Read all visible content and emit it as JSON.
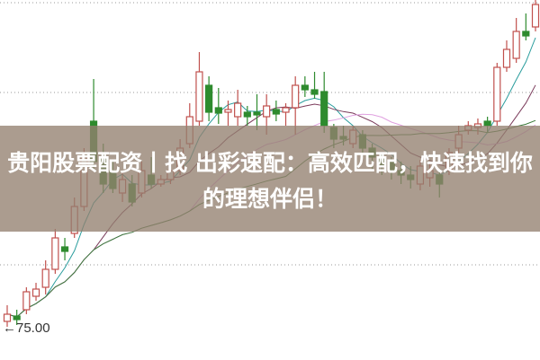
{
  "overlay": {
    "caption": "贵阳股票配资丨找 出彩速配：高效匹配，快速找到你的理想伴侣！",
    "background_color": "#947f70"
  },
  "chart_data": {
    "type": "candlestick",
    "title": "",
    "xlabel": "",
    "ylabel": "",
    "ylim": [
      71.1,
      111.2
    ],
    "grid": "dotted horizontal",
    "up_color": "#c0504d",
    "down_color": "#2e8b2e",
    "moving_average_colors": [
      "#2a9d9d",
      "#7a3a5a",
      "#e0a0e0",
      "#3a7a3a"
    ],
    "annotation": {
      "text": "75.00",
      "arrow": "←"
    },
    "candles": [
      [
        75.4,
        76.2,
        77.2,
        74.8
      ],
      [
        76.0,
        75.6,
        76.7,
        75.0
      ],
      [
        76.7,
        78.7,
        79.2,
        76.2
      ],
      [
        78.2,
        79.0,
        79.7,
        77.7
      ],
      [
        79.2,
        81.2,
        82.2,
        78.4
      ],
      [
        81.2,
        84.7,
        85.7,
        80.7
      ],
      [
        83.7,
        83.2,
        84.7,
        82.2
      ],
      [
        85.2,
        88.2,
        89.2,
        84.7
      ],
      [
        88.2,
        93.7,
        94.7,
        87.7
      ],
      [
        97.7,
        93.2,
        102.4,
        92.2
      ],
      [
        93.7,
        90.7,
        95.2,
        89.7
      ],
      [
        92.2,
        90.2,
        93.2,
        89.7
      ],
      [
        89.7,
        91.2,
        92.2,
        88.7
      ],
      [
        90.7,
        88.7,
        91.7,
        88.2
      ],
      [
        89.7,
        92.2,
        93.2,
        89.2
      ],
      [
        91.7,
        90.7,
        93.7,
        90.2
      ],
      [
        90.7,
        91.2,
        91.7,
        90.4
      ],
      [
        91.2,
        92.2,
        93.2,
        90.7
      ],
      [
        92.2,
        94.7,
        95.7,
        91.7
      ],
      [
        95.2,
        98.2,
        99.7,
        94.7
      ],
      [
        97.7,
        103.2,
        105.4,
        97.2
      ],
      [
        101.7,
        98.7,
        102.7,
        97.7
      ],
      [
        99.2,
        98.6,
        101.4,
        97.4
      ],
      [
        98.7,
        99.0,
        100.0,
        97.2
      ],
      [
        98.2,
        99.7,
        101.2,
        97.2
      ],
      [
        98.7,
        98.2,
        99.4,
        97.2
      ],
      [
        98.7,
        98.4,
        100.7,
        96.7
      ],
      [
        98.2,
        99.4,
        100.7,
        96.2
      ],
      [
        99.0,
        98.5,
        100.0,
        97.7
      ],
      [
        98.7,
        99.2,
        99.7,
        97.2
      ],
      [
        99.2,
        101.7,
        102.7,
        96.2
      ],
      [
        101.7,
        101.2,
        102.7,
        100.4
      ],
      [
        101.2,
        100.7,
        103.2,
        100.2
      ],
      [
        101.0,
        97.2,
        103.2,
        96.4
      ],
      [
        97.0,
        95.7,
        97.4,
        94.7
      ],
      [
        96.0,
        95.7,
        97.2,
        95.0
      ],
      [
        95.2,
        96.7,
        97.2,
        94.7
      ],
      [
        96.2,
        94.7,
        96.7,
        93.7
      ],
      [
        94.7,
        93.7,
        95.2,
        92.2
      ],
      [
        93.7,
        92.7,
        94.2,
        91.7
      ],
      [
        93.2,
        92.2,
        93.7,
        91.2
      ],
      [
        92.2,
        91.7,
        93.2,
        90.7
      ],
      [
        91.7,
        91.2,
        92.7,
        90.2
      ],
      [
        90.7,
        92.7,
        93.4,
        90.0
      ],
      [
        91.4,
        92.2,
        93.2,
        90.4
      ],
      [
        91.7,
        90.7,
        92.2,
        89.2
      ],
      [
        92.2,
        94.2,
        94.7,
        91.7
      ],
      [
        94.7,
        96.2,
        97.2,
        94.2
      ],
      [
        96.7,
        97.2,
        97.7,
        96.2
      ],
      [
        97.0,
        97.4,
        98.0,
        96.2
      ],
      [
        97.7,
        97.2,
        98.2,
        96.4
      ],
      [
        97.7,
        103.7,
        104.2,
        97.2
      ],
      [
        103.7,
        105.7,
        106.7,
        103.2
      ],
      [
        104.7,
        107.7,
        109.2,
        104.2
      ],
      [
        107.7,
        107.2,
        109.7,
        106.7
      ],
      [
        108.2,
        110.7,
        111.2,
        107.7
      ]
    ]
  }
}
